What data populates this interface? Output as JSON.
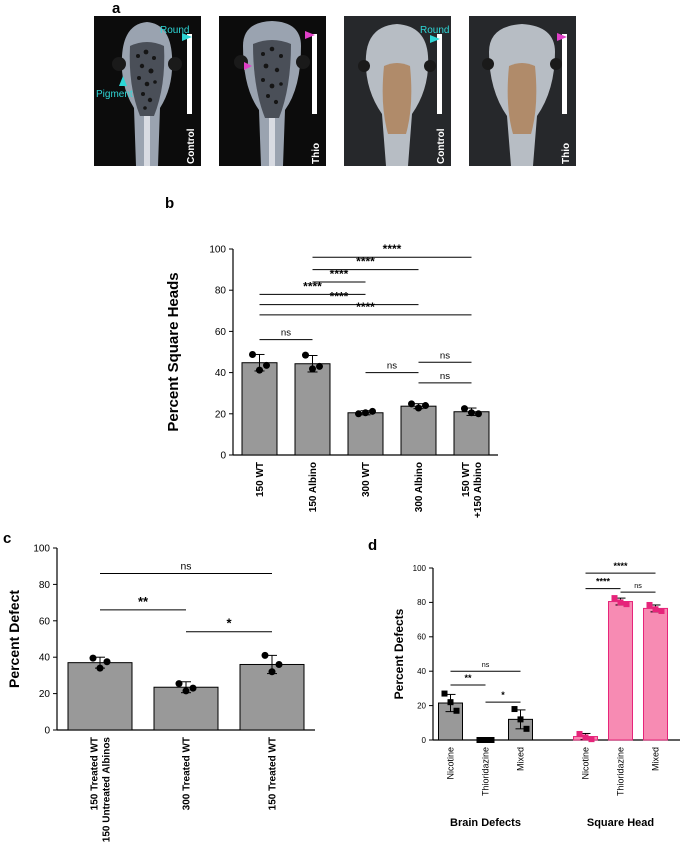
{
  "panel_labels": {
    "a": "a",
    "b": "b",
    "c": "c",
    "d": "d"
  },
  "photos": [
    {
      "caption": "Control",
      "annotations": [
        "Round",
        "Pigment"
      ],
      "arrow_color": "#2ed6d6"
    },
    {
      "caption": "Thio",
      "annotations": [],
      "arrow_color": "#e040c8"
    },
    {
      "caption": "Control",
      "annotations": [
        "Round"
      ],
      "arrow_color": "#2ed6d6"
    },
    {
      "caption": "Thio",
      "annotations": [],
      "arrow_color": "#e040c8"
    }
  ],
  "chart_data": [
    {
      "id": "b",
      "type": "bar",
      "ylabel": "Percent Square Heads",
      "ylim": [
        0,
        100
      ],
      "yticks": [
        0,
        20,
        40,
        60,
        80,
        100
      ],
      "categories": [
        "150 WT",
        "150 Albino",
        "300 WT",
        "300 Albino",
        "150 WT\n+150 Albino"
      ],
      "values": [
        44.8,
        44.3,
        20.5,
        23.7,
        21.0
      ],
      "errors": [
        4.0,
        4.0,
        1.0,
        1.2,
        1.8
      ],
      "points": [
        [
          48.8,
          43.5,
          41.2
        ],
        [
          48.5,
          43.0,
          41.8
        ],
        [
          20.0,
          21.2,
          20.5
        ],
        [
          24.8,
          24.0,
          22.8
        ],
        [
          22.5,
          20.0,
          20.5
        ]
      ],
      "bar_color": "#999999",
      "significance": [
        {
          "from": 0,
          "to": 1,
          "label": "ns",
          "y": 56
        },
        {
          "from": 2,
          "to": 3,
          "label": "ns",
          "y": 40
        },
        {
          "from": 3,
          "to": 4,
          "label": "ns",
          "y": 45
        },
        {
          "from": 3,
          "to": 4,
          "label": "ns",
          "y": 35
        },
        {
          "from": 0,
          "to": 4,
          "label": "****",
          "y": 68
        },
        {
          "from": 0,
          "to": 3,
          "label": "****",
          "y": 73
        },
        {
          "from": 0,
          "to": 2,
          "label": "****",
          "y": 78
        },
        {
          "from": 1,
          "to": 2,
          "label": "****",
          "y": 84
        },
        {
          "from": 1,
          "to": 3,
          "label": "****",
          "y": 90
        },
        {
          "from": 1,
          "to": 4,
          "label": "****",
          "y": 96
        }
      ]
    },
    {
      "id": "c",
      "type": "bar",
      "ylabel": "Percent Defect",
      "ylim": [
        0,
        100
      ],
      "yticks": [
        0,
        20,
        40,
        60,
        80,
        100
      ],
      "categories": [
        "150 Treated WT\n150 Untreated Albinos",
        "300 Treated WT",
        "150 Treated WT"
      ],
      "values": [
        37.0,
        23.5,
        36.0
      ],
      "errors": [
        3.0,
        3.0,
        5.0
      ],
      "points": [
        [
          39.5,
          37.5,
          34.0
        ],
        [
          25.5,
          23.0,
          21.5
        ],
        [
          41.0,
          36.0,
          32.0
        ]
      ],
      "bar_color": "#999999",
      "significance": [
        {
          "from": 0,
          "to": 1,
          "label": "**",
          "y": 66
        },
        {
          "from": 1,
          "to": 2,
          "label": "*",
          "y": 54
        },
        {
          "from": 0,
          "to": 2,
          "label": "ns",
          "y": 86
        }
      ]
    },
    {
      "id": "d",
      "type": "bar",
      "ylabel": "Percent Defects",
      "ylim": [
        0,
        100
      ],
      "yticks": [
        0,
        20,
        40,
        60,
        80,
        100
      ],
      "groups": [
        "Brain Defects",
        "Square Head"
      ],
      "categories": [
        "Nicotine",
        "Thioridazine",
        "Mixed",
        "Nicotine",
        "Thioridazine",
        "Mixed"
      ],
      "values": [
        21.5,
        0,
        12.0,
        2.0,
        80.5,
        76.5
      ],
      "errors": [
        5.0,
        0,
        5.5,
        1.8,
        2.0,
        2.0
      ],
      "points": [
        [
          27.0,
          22.0,
          17.0
        ],
        [
          0,
          0,
          0
        ],
        [
          18.0,
          12.0,
          6.5
        ],
        [
          3.5,
          1.5,
          0.5
        ],
        [
          82.5,
          80.0,
          79.0
        ],
        [
          78.5,
          76.0,
          75.0
        ]
      ],
      "bar_colors": [
        "#999999",
        "#999999",
        "#999999",
        "#f78bb3",
        "#f78bb3",
        "#f78bb3"
      ],
      "point_colors": [
        "#000000",
        "#000000",
        "#000000",
        "#e6247a",
        "#e6247a",
        "#e6247a"
      ],
      "significance": [
        {
          "from": 0,
          "to": 1,
          "label": "**",
          "y": 32
        },
        {
          "from": 1,
          "to": 2,
          "label": "*",
          "y": 22
        },
        {
          "from": 0,
          "to": 2,
          "label": "ns",
          "y": 40
        },
        {
          "from": 3,
          "to": 4,
          "label": "****",
          "y": 88
        },
        {
          "from": 3,
          "to": 5,
          "label": "****",
          "y": 97
        },
        {
          "from": 4,
          "to": 5,
          "label": "ns",
          "y": 86
        }
      ]
    }
  ]
}
